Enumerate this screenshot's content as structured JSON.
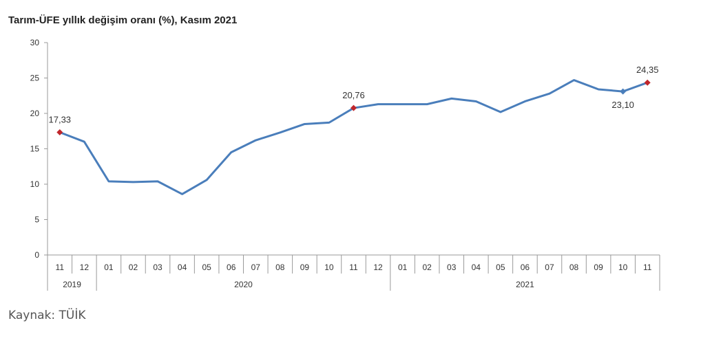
{
  "chart_data": {
    "type": "line",
    "title": "Tarım-ÜFE yıllık değişim oranı (%), Kasım 2021",
    "xlabel": "",
    "ylabel": "",
    "ylim": [
      0,
      30
    ],
    "yticks": [
      "0",
      "5",
      "10",
      "15",
      "20",
      "25",
      "30"
    ],
    "grid": false,
    "months": [
      "11",
      "12",
      "01",
      "02",
      "03",
      "04",
      "05",
      "06",
      "07",
      "08",
      "09",
      "10",
      "11",
      "12",
      "01",
      "02",
      "03",
      "04",
      "05",
      "06",
      "07",
      "08",
      "09",
      "10",
      "11"
    ],
    "years": [
      {
        "label": "2019",
        "span": 2
      },
      {
        "label": "2020",
        "span": 12
      },
      {
        "label": "2021",
        "span": 11
      }
    ],
    "series": [
      {
        "name": "Tarım-ÜFE",
        "color": "#4a7ebb",
        "values": [
          17.33,
          16.0,
          10.4,
          10.3,
          10.4,
          8.6,
          10.6,
          14.5,
          16.2,
          17.3,
          18.5,
          18.7,
          20.76,
          21.3,
          21.3,
          21.3,
          22.1,
          21.7,
          20.2,
          21.7,
          22.8,
          24.7,
          23.4,
          23.1,
          24.35
        ]
      }
    ],
    "annotations": [
      {
        "index": 0,
        "text": "17,33",
        "marker_color": "#c0262b",
        "pos": "above"
      },
      {
        "index": 12,
        "text": "20,76",
        "marker_color": "#c0262b",
        "pos": "above"
      },
      {
        "index": 23,
        "text": "23,10",
        "marker_color": "#4a7ebb",
        "pos": "below"
      },
      {
        "index": 24,
        "text": "24,35",
        "marker_color": "#c0262b",
        "pos": "above"
      }
    ]
  },
  "source": "Kaynak: TÜİK"
}
